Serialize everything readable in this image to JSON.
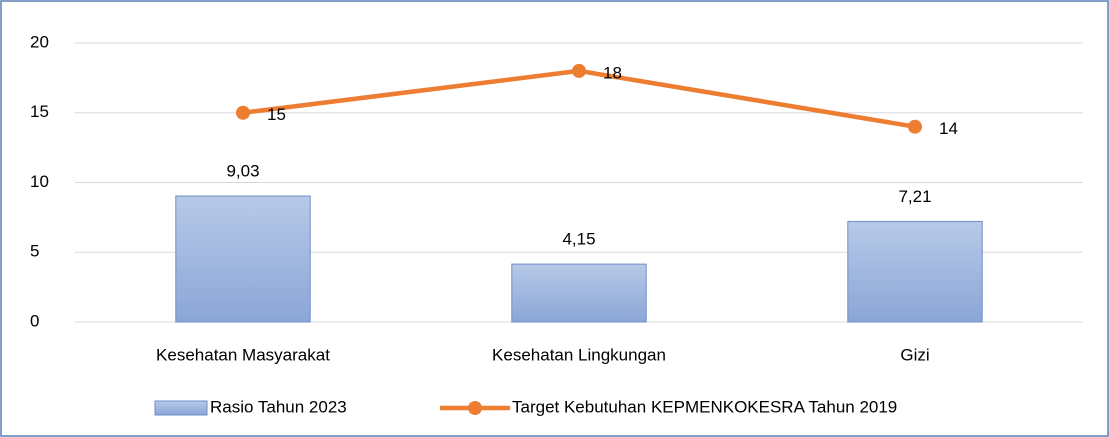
{
  "chart_data": {
    "type": "combo",
    "categories": [
      "Kesehatan Masyarakat",
      "Kesehatan Lingkungan",
      "Gizi"
    ],
    "series": [
      {
        "name": "Rasio Tahun 2023",
        "type": "bar",
        "color": "#9db4de",
        "values": [
          9.03,
          4.15,
          7.21
        ],
        "value_labels": [
          "9,03",
          "4,15",
          "7,21"
        ]
      },
      {
        "name": "Target Kebutuhan KEPMENKOKESRA Tahun 2019",
        "type": "line",
        "color": "#ed7d31",
        "values": [
          15,
          18,
          14
        ]
      }
    ],
    "ylim": [
      0,
      20
    ],
    "yticks": [
      0,
      5,
      10,
      15,
      20
    ],
    "grid": true,
    "legend": "bottom"
  }
}
